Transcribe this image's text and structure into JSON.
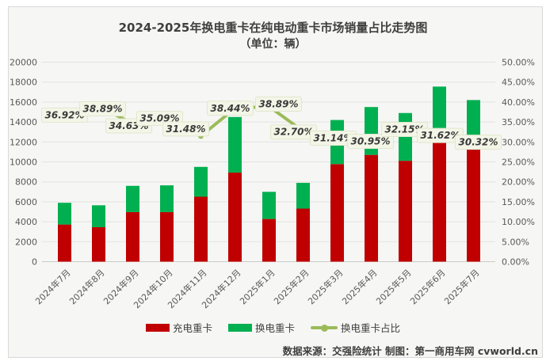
{
  "chart_data": {
    "type": "stacked-bar-with-line",
    "title": "2024-2025年换电重卡在纯电动重卡市场销量占比走势图",
    "subtitle": "（单位：辆）",
    "categories": [
      "2024年7月",
      "2024年8月",
      "2024年9月",
      "2024年10月",
      "2024年11月",
      "2024年12月",
      "2025年1月",
      "2025年2月",
      "2025年3月",
      "2025年4月",
      "2025年5月",
      "2025年6月",
      "2025年7月"
    ],
    "series": [
      {
        "name": "充电重卡",
        "type": "bar",
        "stack": "sales",
        "color": "#c00000",
        "values": [
          3722,
          3453,
          4968,
          4966,
          6509,
          8926,
          4278,
          5317,
          9778,
          10703,
          10110,
          12001,
          11289
        ]
      },
      {
        "name": "换电重卡",
        "type": "bar",
        "stack": "sales",
        "color": "#00b050",
        "values": [
          2178,
          2197,
          2632,
          2684,
          2991,
          5574,
          2722,
          2583,
          4422,
          4797,
          4790,
          5549,
          4911
        ]
      },
      {
        "name": "换电重卡占比",
        "type": "line",
        "axis": "right",
        "color": "#9bbb59",
        "values": [
          36.92,
          38.89,
          34.63,
          35.09,
          31.48,
          38.44,
          38.89,
          32.7,
          31.14,
          30.95,
          32.15,
          31.62,
          30.32
        ],
        "labels": [
          "36.92%",
          "38.89%",
          "34.63%",
          "35.09%",
          "31.48%",
          "38.44%",
          "38.89%",
          "32.70%",
          "31.14%",
          "30.95%",
          "32.15%",
          "31.62%",
          "30.32%"
        ]
      }
    ],
    "left_axis": {
      "min": 0,
      "max": 20000,
      "step": 2000
    },
    "right_axis": {
      "min": 0,
      "max": 50,
      "step": 5,
      "format": "percent"
    },
    "grid": "horizontal",
    "legend_position": "bottom",
    "label_bg": "#f3f6e7",
    "label_border": "#e2e7cf"
  },
  "footer": {
    "text": "数据来源：交强险统计 制图：第一商用车网 cvworld.cn"
  }
}
